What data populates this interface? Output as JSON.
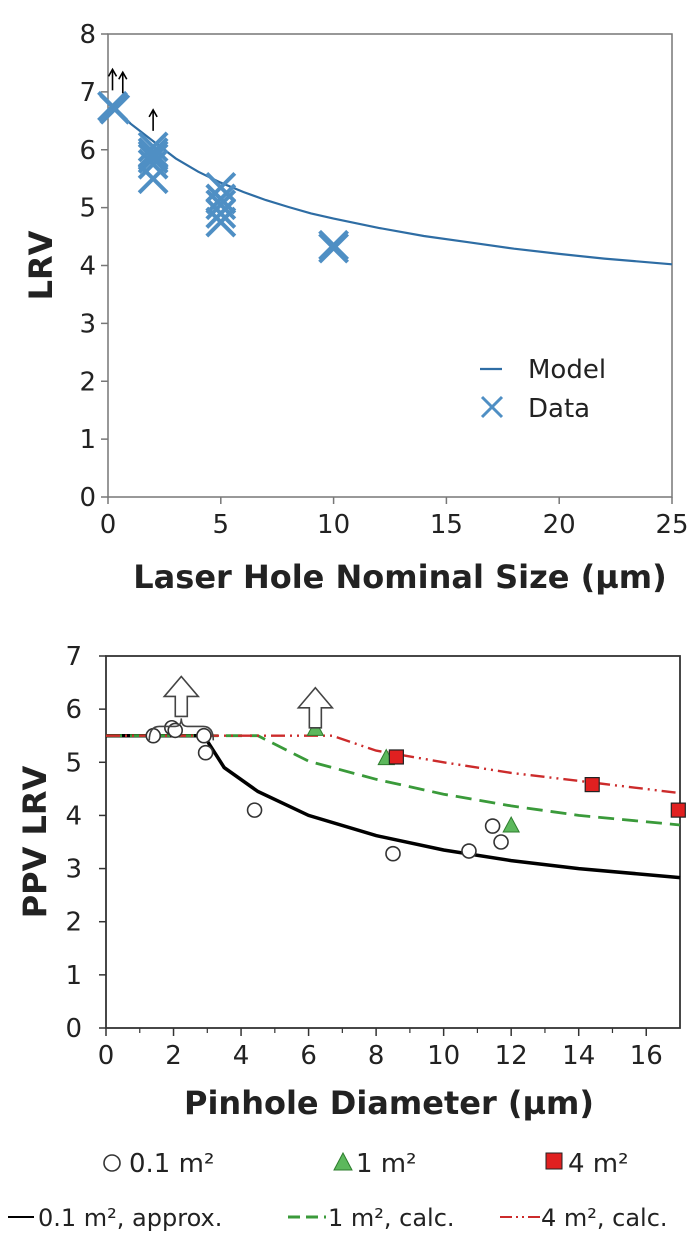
{
  "chart_data": [
    {
      "type": "line",
      "xlabel": "Laser Hole Nominal Size (µm)",
      "ylabel": "LRV",
      "xlim": [
        0,
        25
      ],
      "ylim": [
        0,
        8
      ],
      "xticks": [
        "0",
        "5",
        "10",
        "15",
        "20",
        "25"
      ],
      "yticks": [
        "0",
        "1",
        "2",
        "3",
        "4",
        "5",
        "6",
        "7",
        "8"
      ],
      "legend": {
        "placement": "bottom-right",
        "entries": [
          "Model",
          "Data"
        ]
      },
      "colors": {
        "series": "#2e6da4",
        "markers": "#4f8fc4"
      },
      "series": [
        {
          "name": "Model",
          "style": "line",
          "x": [
            0.1,
            0.5,
            1,
            2,
            3,
            4,
            5,
            6,
            7,
            8,
            9,
            10,
            12,
            14,
            16,
            18,
            20,
            22,
            25
          ],
          "y": [
            6.8,
            6.65,
            6.45,
            6.15,
            5.85,
            5.62,
            5.43,
            5.27,
            5.13,
            5.01,
            4.9,
            4.81,
            4.65,
            4.51,
            4.4,
            4.29,
            4.2,
            4.12,
            4.02
          ]
        },
        {
          "name": "Data",
          "style": "x",
          "x": [
            0.2,
            0.3,
            2,
            2,
            2,
            2,
            2,
            2,
            5,
            5,
            5,
            5,
            5,
            10,
            10
          ],
          "y": [
            6.75,
            6.7,
            6.05,
            5.95,
            5.9,
            5.85,
            5.75,
            5.5,
            5.35,
            5.15,
            5.05,
            4.9,
            4.75,
            4.35,
            4.3
          ],
          "lower_bound": [
            true,
            true,
            true,
            false,
            false,
            false,
            false,
            false,
            false,
            false,
            false,
            false,
            false,
            false,
            false
          ]
        }
      ]
    },
    {
      "type": "line",
      "xlabel": "Pinhole Diameter (µm)",
      "ylabel": "PPV LRV",
      "xlim": [
        0,
        17
      ],
      "ylim": [
        0,
        7
      ],
      "xticks": [
        "0",
        "2",
        "4",
        "6",
        "8",
        "10",
        "12",
        "14",
        "16"
      ],
      "yticks": [
        "0",
        "1",
        "2",
        "3",
        "4",
        "5",
        "6",
        "7"
      ],
      "legend": {
        "placement": "below"
      },
      "series": [
        {
          "name": "0.1 m²",
          "style": "circle",
          "color": "#ffffff",
          "x": [
            1.4,
            1.95,
            2.05,
            2.9,
            2.95,
            4.4,
            8.5,
            10.75,
            11.45,
            11.7
          ],
          "y": [
            5.5,
            5.65,
            5.6,
            5.5,
            5.18,
            4.1,
            3.28,
            3.33,
            3.8,
            3.5
          ]
        },
        {
          "name": "1 m²",
          "style": "triangle",
          "color": "#5cb85c",
          "x": [
            6.2,
            8.3,
            12.0
          ],
          "y": [
            5.62,
            5.07,
            3.8
          ]
        },
        {
          "name": "4 m²",
          "style": "square",
          "color": "#e02020",
          "x": [
            8.6,
            14.4,
            16.95
          ],
          "y": [
            5.1,
            4.58,
            4.1
          ]
        },
        {
          "name": "0.1 m², approx.",
          "style": "solid",
          "color": "#000000",
          "x": [
            0,
            2.9,
            3.5,
            4.5,
            6,
            8,
            10,
            12,
            14,
            17
          ],
          "y": [
            5.5,
            5.5,
            4.9,
            4.45,
            4.0,
            3.62,
            3.35,
            3.15,
            3.0,
            2.83
          ]
        },
        {
          "name": "1 m², calc.",
          "style": "dashed",
          "color": "#3a9a3a",
          "x": [
            0,
            4.5,
            6,
            8,
            10,
            12,
            14,
            17
          ],
          "y": [
            5.5,
            5.5,
            5.02,
            4.68,
            4.4,
            4.18,
            4.0,
            3.82
          ]
        },
        {
          "name": "4 m², calc.",
          "style": "dashdot",
          "color": "#cc2b2b",
          "x": [
            0,
            6.7,
            8,
            10,
            12,
            14,
            17
          ],
          "y": [
            5.5,
            5.5,
            5.22,
            5.0,
            4.8,
            4.65,
            4.42
          ]
        }
      ],
      "annotations": [
        {
          "type": "bracket-arrow",
          "x_from": 1.4,
          "x_to": 3.0,
          "y": 5.75
        },
        {
          "type": "arrow",
          "x": 6.2,
          "y": 5.8
        }
      ]
    }
  ]
}
